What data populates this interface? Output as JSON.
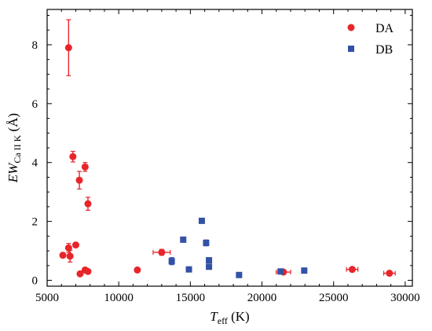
{
  "chart_data": {
    "type": "scatter",
    "title": "",
    "xlabel": {
      "main": "T",
      "sub": "eff",
      "unit": "(K)"
    },
    "ylabel": {
      "main": "EW",
      "sub": "Ca II K",
      "unit": "(Å)"
    },
    "xlim": [
      5000,
      30500
    ],
    "ylim": [
      -0.2,
      9.2
    ],
    "xticks": [
      5000,
      10000,
      15000,
      20000,
      25000,
      30000
    ],
    "yticks": [
      0,
      2,
      4,
      6,
      8
    ],
    "grid": false,
    "legend_position": "top-right",
    "series": [
      {
        "name": "DA",
        "marker": "circle",
        "color": "#e8252a",
        "points": [
          {
            "x": 6100,
            "y": 0.85,
            "yerr": 0.08,
            "xerr": 0
          },
          {
            "x": 6500,
            "y": 7.9,
            "yerr": 0.95,
            "xerr": 0
          },
          {
            "x": 6500,
            "y": 1.1,
            "yerr": 0.15,
            "xerr": 0
          },
          {
            "x": 6600,
            "y": 0.82,
            "yerr": 0.2,
            "xerr": 0
          },
          {
            "x": 6800,
            "y": 4.2,
            "yerr": 0.18,
            "xerr": 0
          },
          {
            "x": 7000,
            "y": 1.2,
            "yerr": 0.05,
            "xerr": 0
          },
          {
            "x": 7250,
            "y": 3.4,
            "yerr": 0.3,
            "xerr": 0
          },
          {
            "x": 7300,
            "y": 0.22,
            "yerr": 0.05,
            "xerr": 0
          },
          {
            "x": 7650,
            "y": 3.85,
            "yerr": 0.15,
            "xerr": 0
          },
          {
            "x": 7650,
            "y": 0.35,
            "yerr": 0.05,
            "xerr": 0
          },
          {
            "x": 7850,
            "y": 2.6,
            "yerr": 0.22,
            "xerr": 0
          },
          {
            "x": 7850,
            "y": 0.3,
            "yerr": 0.04,
            "xerr": 0
          },
          {
            "x": 11300,
            "y": 0.35,
            "yerr": 0.03,
            "xerr": 0
          },
          {
            "x": 13000,
            "y": 0.95,
            "yerr": 0.1,
            "xerr": 600
          },
          {
            "x": 21500,
            "y": 0.28,
            "yerr": 0.04,
            "xerr": 500
          },
          {
            "x": 26300,
            "y": 0.37,
            "yerr": 0.05,
            "xerr": 400
          },
          {
            "x": 28900,
            "y": 0.24,
            "yerr": 0.05,
            "xerr": 400
          }
        ]
      },
      {
        "name": "DB",
        "marker": "square",
        "color": "#3352a6",
        "points": [
          {
            "x": 13700,
            "y": 0.65,
            "yerr": 0.12,
            "xerr": 0
          },
          {
            "x": 14500,
            "y": 1.38,
            "yerr": 0.04,
            "xerr": 0
          },
          {
            "x": 14900,
            "y": 0.37,
            "yerr": 0.04,
            "xerr": 0
          },
          {
            "x": 15800,
            "y": 2.02,
            "yerr": 0.04,
            "xerr": 0
          },
          {
            "x": 16100,
            "y": 1.27,
            "yerr": 0.1,
            "xerr": 0
          },
          {
            "x": 16300,
            "y": 0.68,
            "yerr": 0.05,
            "xerr": 0
          },
          {
            "x": 16300,
            "y": 0.46,
            "yerr": 0.05,
            "xerr": 0
          },
          {
            "x": 18400,
            "y": 0.18,
            "yerr": 0.03,
            "xerr": 0
          },
          {
            "x": 21300,
            "y": 0.3,
            "yerr": 0.04,
            "xerr": 0
          },
          {
            "x": 22950,
            "y": 0.33,
            "yerr": 0.04,
            "xerr": 0
          }
        ]
      }
    ]
  }
}
